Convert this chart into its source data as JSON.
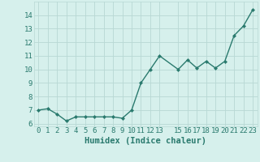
{
  "x": [
    0,
    1,
    2,
    3,
    4,
    5,
    6,
    7,
    8,
    9,
    10,
    11,
    12,
    13,
    15,
    16,
    17,
    18,
    19,
    20,
    21,
    22,
    23
  ],
  "y": [
    7.0,
    7.1,
    6.7,
    6.2,
    6.5,
    6.5,
    6.5,
    6.5,
    6.5,
    6.4,
    7.0,
    9.0,
    10.0,
    11.0,
    10.0,
    10.7,
    10.1,
    10.6,
    10.1,
    10.6,
    12.5,
    13.2,
    14.4
  ],
  "line_color": "#2a7a6e",
  "marker": "D",
  "marker_size": 2.0,
  "bg_color": "#d6f0ec",
  "grid_color": "#b8d8d4",
  "xlabel": "Humidex (Indice chaleur)",
  "xlim": [
    -0.5,
    23.5
  ],
  "ylim": [
    5.8,
    15.0
  ],
  "yticks": [
    6,
    7,
    8,
    9,
    10,
    11,
    12,
    13,
    14
  ],
  "xticks": [
    0,
    1,
    2,
    3,
    4,
    5,
    6,
    7,
    8,
    9,
    10,
    11,
    12,
    13,
    15,
    16,
    17,
    18,
    19,
    20,
    21,
    22,
    23
  ],
  "tick_label_size": 6.5,
  "xlabel_size": 7.5,
  "line_width": 1.0
}
